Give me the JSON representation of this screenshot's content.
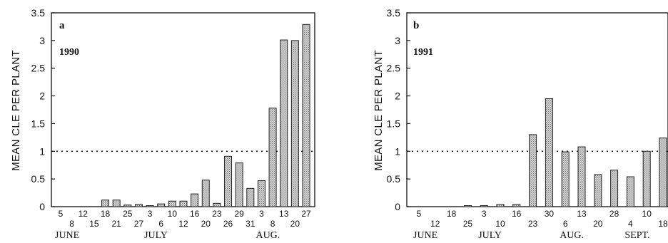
{
  "chart_data": [
    {
      "type": "bar",
      "panel_label": "a",
      "year_label": "1990",
      "ylabel": "MEAN CLE PER PLANT",
      "ylim": [
        0,
        3.5
      ],
      "yticks": [
        "0",
        "0.5",
        "1",
        "1.5",
        "2",
        "2.5",
        "3",
        "3.5"
      ],
      "reference_line": 1,
      "categories": [
        "5",
        "8",
        "12",
        "15",
        "18",
        "21",
        "25",
        "27",
        "3",
        "6",
        "10",
        "12",
        "16",
        "20",
        "23",
        "26",
        "29",
        "31",
        "3",
        "8",
        "13",
        "20",
        "27"
      ],
      "values": [
        0,
        0,
        0,
        0,
        0.12,
        0.12,
        0.03,
        0.04,
        0.01,
        0.05,
        0.1,
        0.1,
        0.23,
        0.48,
        0.06,
        0.91,
        0.79,
        0.33,
        0.47,
        1.78,
        3.01,
        3.0,
        3.29
      ],
      "months": [
        {
          "label": "JUNE",
          "start": 0
        },
        {
          "label": "JULY",
          "start": 8
        },
        {
          "label": "AUG.",
          "start": 18
        }
      ]
    },
    {
      "type": "bar",
      "panel_label": "b",
      "year_label": "1991",
      "ylabel": "MEAN CLE PER PLANT",
      "ylim": [
        0,
        3.5
      ],
      "yticks": [
        "0",
        "0.5",
        "1",
        "1.5",
        "2",
        "2.5",
        "3",
        "3.5"
      ],
      "reference_line": 1,
      "categories": [
        "5",
        "12",
        "18",
        "25",
        "3",
        "10",
        "16",
        "23",
        "30",
        "6",
        "13",
        "20",
        "28",
        "4",
        "10",
        "18"
      ],
      "values": [
        0,
        0,
        0,
        0.01,
        0.02,
        0.04,
        0.04,
        1.3,
        1.95,
        0.99,
        1.08,
        0.58,
        0.66,
        0.54,
        1.0,
        1.24
      ],
      "months": [
        {
          "label": "JUNE",
          "start": 0
        },
        {
          "label": "JULY",
          "start": 4
        },
        {
          "label": "AUG.",
          "start": 9
        },
        {
          "label": "SEPT.",
          "start": 13
        }
      ]
    }
  ],
  "colors": {
    "bar_fill": "#b8b8b8",
    "bar_stroke": "#222222",
    "axis": "#111111"
  }
}
